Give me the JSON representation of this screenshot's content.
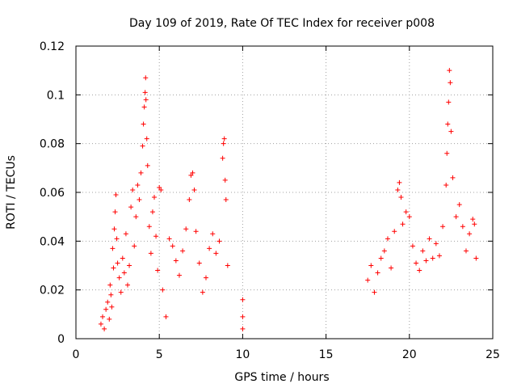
{
  "chart_data": {
    "type": "scatter",
    "title": "Day 109 of 2019, Rate Of TEC Index for receiver p008",
    "xlabel": "GPS time / hours",
    "ylabel": "ROTI / TECUs",
    "xlim": [
      0,
      25
    ],
    "ylim": [
      0,
      0.12
    ],
    "xticks": [
      "0",
      "5",
      "10",
      "15",
      "20",
      "25"
    ],
    "yticks": [
      "0",
      "0.02",
      "0.04",
      "0.06",
      "0.08",
      "0.1",
      "0.12"
    ],
    "grid": true,
    "legend": "none",
    "marker": "+",
    "series_color": "#ff0000",
    "series": [
      {
        "points": [
          [
            1.5,
            0.006
          ],
          [
            1.6,
            0.009
          ],
          [
            1.7,
            0.004
          ],
          [
            1.8,
            0.012
          ],
          [
            1.9,
            0.015
          ],
          [
            2.0,
            0.008
          ],
          [
            2.05,
            0.022
          ],
          [
            2.1,
            0.018
          ],
          [
            2.15,
            0.013
          ],
          [
            2.2,
            0.037
          ],
          [
            2.25,
            0.029
          ],
          [
            2.3,
            0.045
          ],
          [
            2.35,
            0.052
          ],
          [
            2.4,
            0.059
          ],
          [
            2.45,
            0.041
          ],
          [
            2.5,
            0.031
          ],
          [
            2.6,
            0.025
          ],
          [
            2.7,
            0.019
          ],
          [
            2.8,
            0.033
          ],
          [
            2.9,
            0.027
          ],
          [
            3.0,
            0.043
          ],
          [
            3.1,
            0.022
          ],
          [
            3.2,
            0.03
          ],
          [
            3.3,
            0.054
          ],
          [
            3.4,
            0.061
          ],
          [
            3.5,
            0.038
          ],
          [
            3.6,
            0.05
          ],
          [
            3.7,
            0.063
          ],
          [
            3.8,
            0.057
          ],
          [
            3.9,
            0.068
          ],
          [
            4.0,
            0.079
          ],
          [
            4.05,
            0.088
          ],
          [
            4.1,
            0.095
          ],
          [
            4.15,
            0.101
          ],
          [
            4.18,
            0.107
          ],
          [
            4.2,
            0.098
          ],
          [
            4.25,
            0.082
          ],
          [
            4.3,
            0.071
          ],
          [
            4.4,
            0.046
          ],
          [
            4.5,
            0.035
          ],
          [
            4.6,
            0.052
          ],
          [
            4.7,
            0.058
          ],
          [
            4.8,
            0.042
          ],
          [
            4.9,
            0.028
          ],
          [
            5.0,
            0.062
          ],
          [
            5.1,
            0.061
          ],
          [
            5.2,
            0.02
          ],
          [
            5.4,
            0.009
          ],
          [
            5.6,
            0.041
          ],
          [
            5.8,
            0.038
          ],
          [
            6.0,
            0.032
          ],
          [
            6.2,
            0.026
          ],
          [
            6.4,
            0.036
          ],
          [
            6.6,
            0.045
          ],
          [
            6.8,
            0.057
          ],
          [
            6.9,
            0.067
          ],
          [
            7.0,
            0.068
          ],
          [
            7.1,
            0.061
          ],
          [
            7.2,
            0.044
          ],
          [
            7.4,
            0.031
          ],
          [
            7.6,
            0.019
          ],
          [
            7.8,
            0.025
          ],
          [
            8.0,
            0.037
          ],
          [
            8.2,
            0.043
          ],
          [
            8.4,
            0.035
          ],
          [
            8.6,
            0.04
          ],
          [
            8.8,
            0.074
          ],
          [
            8.85,
            0.08
          ],
          [
            8.9,
            0.082
          ],
          [
            8.95,
            0.065
          ],
          [
            9.0,
            0.057
          ],
          [
            9.1,
            0.03
          ],
          [
            10.0,
            0.016
          ],
          [
            10.0,
            0.009
          ],
          [
            10.0,
            0.004
          ],
          [
            17.5,
            0.024
          ],
          [
            17.7,
            0.03
          ],
          [
            17.9,
            0.019
          ],
          [
            18.1,
            0.027
          ],
          [
            18.3,
            0.033
          ],
          [
            18.5,
            0.036
          ],
          [
            18.7,
            0.041
          ],
          [
            18.9,
            0.029
          ],
          [
            19.1,
            0.044
          ],
          [
            19.3,
            0.061
          ],
          [
            19.4,
            0.064
          ],
          [
            19.5,
            0.058
          ],
          [
            19.6,
            0.047
          ],
          [
            19.8,
            0.052
          ],
          [
            20.0,
            0.05
          ],
          [
            20.2,
            0.038
          ],
          [
            20.4,
            0.031
          ],
          [
            20.6,
            0.028
          ],
          [
            20.8,
            0.036
          ],
          [
            21.0,
            0.032
          ],
          [
            21.2,
            0.041
          ],
          [
            21.4,
            0.033
          ],
          [
            21.6,
            0.039
          ],
          [
            21.8,
            0.034
          ],
          [
            22.0,
            0.046
          ],
          [
            22.2,
            0.063
          ],
          [
            22.25,
            0.076
          ],
          [
            22.3,
            0.088
          ],
          [
            22.35,
            0.097
          ],
          [
            22.4,
            0.11
          ],
          [
            22.45,
            0.105
          ],
          [
            22.5,
            0.085
          ],
          [
            22.6,
            0.066
          ],
          [
            22.8,
            0.05
          ],
          [
            23.0,
            0.055
          ],
          [
            23.2,
            0.046
          ],
          [
            23.4,
            0.036
          ],
          [
            23.6,
            0.043
          ],
          [
            23.8,
            0.049
          ],
          [
            23.9,
            0.047
          ],
          [
            24.0,
            0.033
          ]
        ]
      }
    ]
  }
}
